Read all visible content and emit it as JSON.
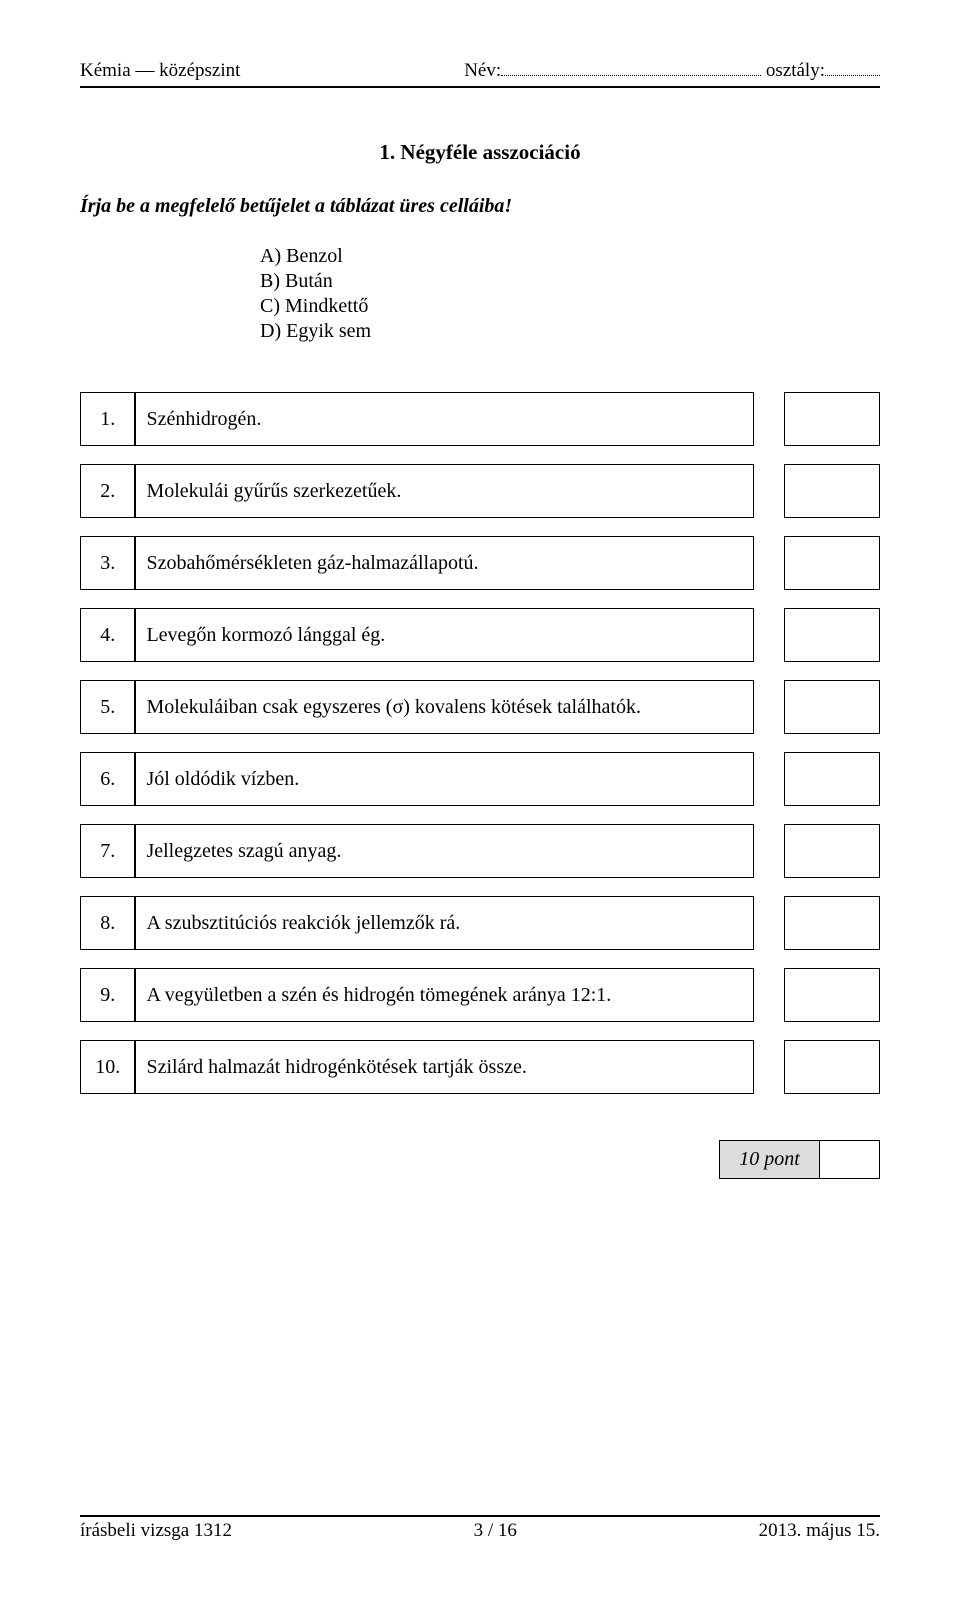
{
  "header": {
    "subject_level": "Kémia — középszint",
    "name_label": "Név:",
    "class_label": " osztály:"
  },
  "title": "1. Négyféle asszociáció",
  "instruction": "Írja be a megfelelő betűjelet a táblázat üres celláiba!",
  "options": [
    "A) Benzol",
    "B) Bután",
    "C) Mindkettő",
    "D) Egyik sem"
  ],
  "questions": [
    {
      "num": "1.",
      "text": "Szénhidrogén."
    },
    {
      "num": "2.",
      "text": "Molekulái gyűrűs szerkezetűek."
    },
    {
      "num": "3.",
      "text": "Szobahőmérsékleten gáz-halmazállapotú."
    },
    {
      "num": "4.",
      "text": "Levegőn kormozó lánggal ég."
    },
    {
      "num": "5.",
      "text": "Molekuláiban csak egyszeres (σ) kovalens kötések találhatók."
    },
    {
      "num": "6.",
      "text": "Jól oldódik vízben."
    },
    {
      "num": "7.",
      "text": "Jellegzetes szagú anyag."
    },
    {
      "num": "8.",
      "text": "A szubsztitúciós reakciók jellemzők rá."
    },
    {
      "num": "9.",
      "text": "A vegyületben a szén és hidrogén tömegének aránya 12:1."
    },
    {
      "num": "10.",
      "text": "Szilárd halmazát hidrogénkötések tartják össze."
    }
  ],
  "score_label": "10 pont",
  "footer": {
    "left": "írásbeli vizsga 1312",
    "center": "3 / 16",
    "right": "2013. május 15."
  }
}
